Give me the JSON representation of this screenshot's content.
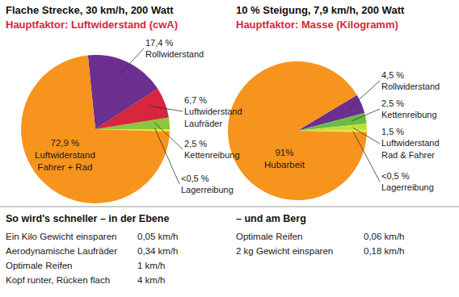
{
  "chart_data": [
    {
      "type": "pie",
      "title": "Flache Strecke, 30 km/h, 200 Watt",
      "subtitle": "Hauptfaktor: Luftwiderstand (cwA)",
      "categories": [
        "Lagerreibung",
        "Kettenreibung",
        "Luftwiderstand\nLaufräder",
        "Rollwiderstand",
        "Luftwiderstand\nFahrer + Rad"
      ],
      "values": [
        0.5,
        2.5,
        6.7,
        17.4,
        72.9
      ],
      "value_labels": [
        "<0,5 %",
        "2,5 %",
        "6,7 %",
        "17,4 %",
        "72,9 %"
      ],
      "colors": [
        "#f4e41c",
        "#8cc63f",
        "#d7263d",
        "#6b2f8f",
        "#f7941d"
      ],
      "data_labels": true
    },
    {
      "type": "pie",
      "title": "10 % Steigung, 7,9 km/h, 200 Watt",
      "subtitle": "Hauptfaktor: Masse (Kilogramm)",
      "categories": [
        "Rollwiderstand",
        "Kettenreibung",
        "Luftwiderstand\nRad & Fahrer",
        "Lagerreibung",
        "Hubarbeit"
      ],
      "values": [
        4.5,
        2.5,
        1.5,
        0.5,
        91
      ],
      "value_labels": [
        "4,5 %",
        "2,5 %",
        "1,5 %",
        "<0,5 %",
        "91%"
      ],
      "colors": [
        "#6b2f8f",
        "#6dbb45",
        "#c5df3a",
        "#f4e41c",
        "#f7941d"
      ],
      "data_labels": true
    }
  ],
  "tips": [
    {
      "title": "So wird's schneller – in der Ebene",
      "rows": [
        [
          "Ein Kilo Gewicht einsparen",
          "0,05 km/h"
        ],
        [
          "Aerodynamische Laufräder",
          "0,34 km/h"
        ],
        [
          "Optimale Reifen",
          "1 km/h"
        ],
        [
          "Kopf runter, Rücken flach",
          "4 km/h"
        ]
      ]
    },
    {
      "title": "– und am Berg",
      "rows": [
        [
          "Optimale Reifen",
          "0,06 km/h"
        ],
        [
          "2 kg Gewicht einsparen",
          "0,18 km/h"
        ]
      ]
    }
  ]
}
